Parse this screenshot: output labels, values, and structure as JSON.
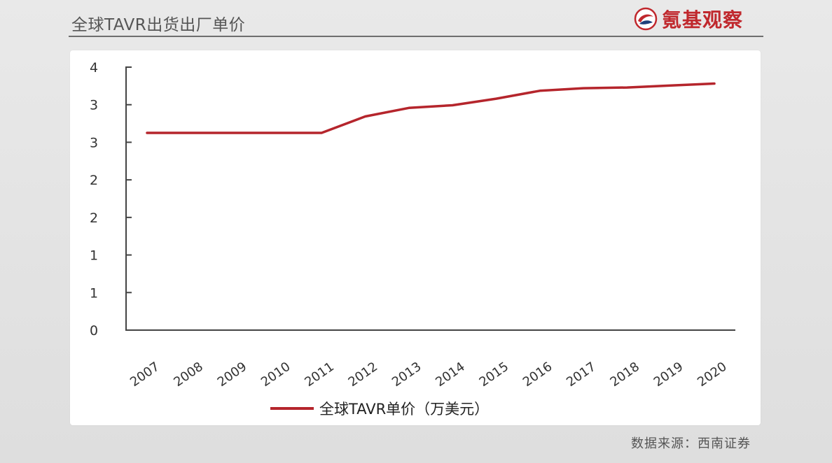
{
  "header": {
    "title": "全球TAVR出货出厂单价"
  },
  "logo": {
    "text": "氪基观察",
    "icon": "brand-swirl-icon",
    "color": "#c0282d"
  },
  "footer": {
    "source": "数据来源：西南证券"
  },
  "chart_data": {
    "type": "line",
    "categories": [
      "2007",
      "2008",
      "2009",
      "2010",
      "2011",
      "2012",
      "2013",
      "2014",
      "2015",
      "2016",
      "2017",
      "2018",
      "2019",
      "2020"
    ],
    "series": [
      {
        "name": "全球TAVR单价（万美元）",
        "values": [
          3.0,
          3.0,
          3.0,
          3.0,
          3.0,
          3.25,
          3.38,
          3.42,
          3.52,
          3.64,
          3.68,
          3.69,
          3.72,
          3.75
        ],
        "color": "#b5252c"
      }
    ],
    "ytick_labels": [
      "0",
      "1",
      "1",
      "2",
      "2",
      "3",
      "3",
      "4"
    ],
    "ylim": [
      0,
      4
    ],
    "grid": false,
    "legend_position": "bottom"
  }
}
